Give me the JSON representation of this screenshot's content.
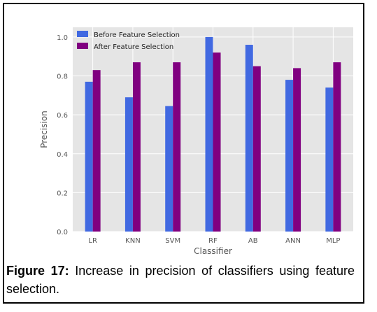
{
  "chart_data": {
    "type": "bar",
    "xlabel": "Classifier",
    "ylabel": "Precision",
    "categories": [
      "LR",
      "KNN",
      "SVM",
      "RF",
      "AB",
      "ANN",
      "MLP"
    ],
    "series": [
      {
        "name": "Before Feature Selection",
        "color": "#4169e1",
        "values": [
          0.77,
          0.69,
          0.645,
          1.0,
          0.96,
          0.78,
          0.74
        ]
      },
      {
        "name": "After Feature Selection",
        "color": "#800080",
        "values": [
          0.83,
          0.87,
          0.87,
          0.92,
          0.85,
          0.84,
          0.87
        ]
      }
    ],
    "ylim": [
      0,
      1.05
    ],
    "yticks": [
      "0.0",
      "0.2",
      "0.4",
      "0.6",
      "0.8",
      "1.0"
    ],
    "grid": true,
    "legend_position": "top-left",
    "background": "#e5e5e5"
  },
  "caption": {
    "label": "Figure 17:",
    "text": "Increase in precision of classifiers using feature selection."
  }
}
